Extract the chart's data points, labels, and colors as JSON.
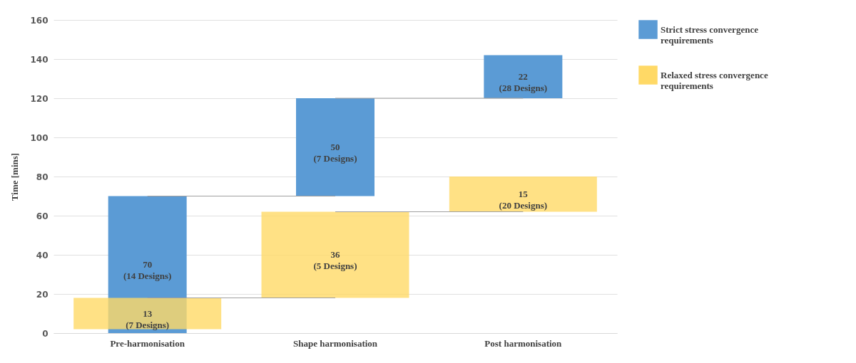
{
  "chart_data": {
    "type": "bar",
    "ylabel": "Time [mins]",
    "categories": [
      "Pre-harmonisation",
      "Shape harmonisation",
      "Post harmonisation"
    ],
    "series": [
      {
        "type": "line",
        "color": "#a0a0a0",
        "values": [
          70,
          70,
          null
        ]
      },
      {
        "type": "line",
        "color": "#a0a0a0",
        "values": [
          null,
          120,
          120
        ]
      },
      {
        "type": "line",
        "color": "#a0a0a0",
        "values": [
          18,
          18,
          null
        ]
      },
      {
        "type": "line",
        "color": "#a0a0a0",
        "values": [
          null,
          62,
          62
        ]
      },
      {
        "name": "Strict stress convergence requirements",
        "color": "#5b9bd5",
        "base": [
          0,
          70,
          120
        ],
        "values": [
          70,
          50,
          22
        ],
        "value_labels": [
          "70\n(14 Designs)",
          "50\n(7 Designs)",
          "22\n(28 Designs)"
        ]
      },
      {
        "name": "Relaxed stress convergence requirements",
        "color": "#ffd966",
        "base": [
          2,
          18,
          62
        ],
        "values": [
          16,
          44,
          18
        ]
      }
    ],
    "annotations": [
      "13\n(7 Designs)",
      "36\n(5 Designs)",
      "15\n(20 Designs)"
    ],
    "ylim": [
      0,
      160
    ],
    "yticks": [
      0,
      20,
      40,
      60,
      80,
      100,
      120,
      140,
      160
    ],
    "grid": "y",
    "legend": "right"
  }
}
